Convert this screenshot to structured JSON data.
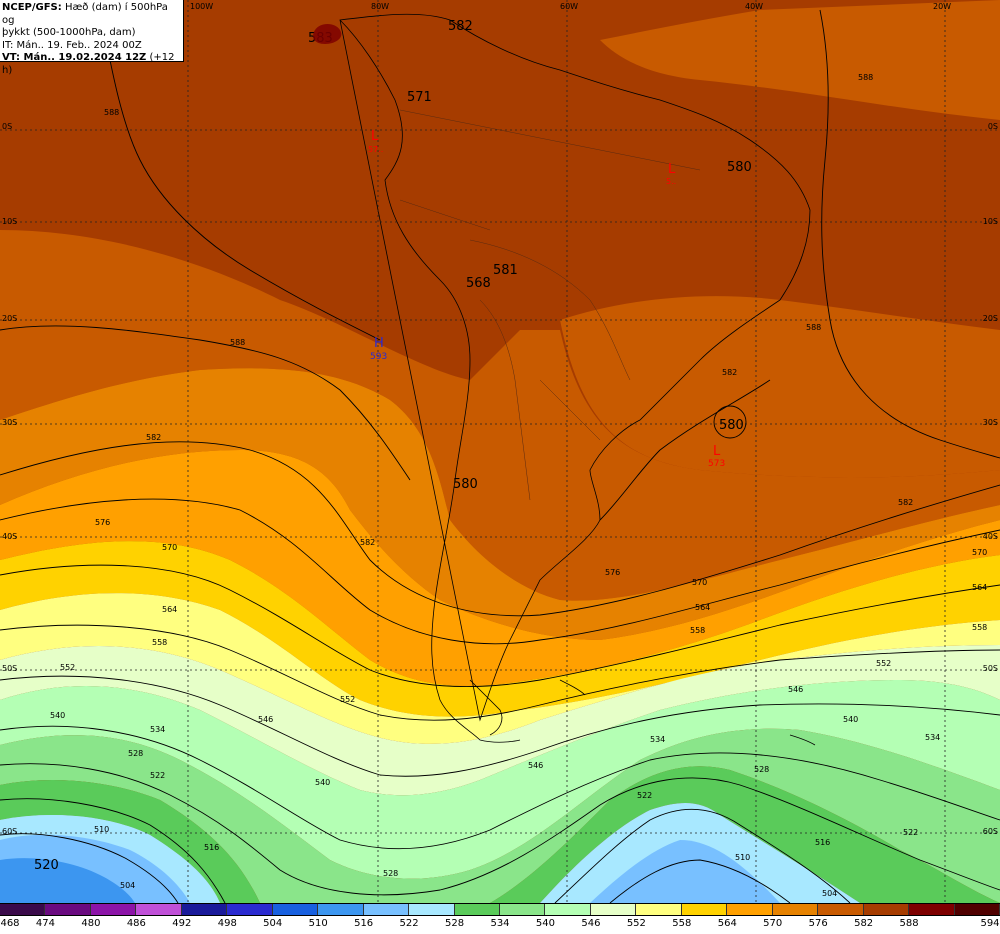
{
  "title": {
    "line1_bold": "NCEP/GFS:",
    "line1_rest": " Hæð (dam) í 500hPa og",
    "line2": "þykkt (500-1000hPa, dam)",
    "line3": "IT: Mán.. 19. Feb.. 2024 00Z",
    "line4_bold": "VT: Mán.. 19.02.2024 12Z",
    "line4_rest": " (+12 h)"
  },
  "lon_labels": [
    "100W",
    "80W",
    "60W",
    "40W",
    "20W"
  ],
  "lat_labels": [
    "0S",
    "10S",
    "20S",
    "30S",
    "40S",
    "50S",
    "60S"
  ],
  "colorbar": {
    "labels": [
      "468",
      "474",
      "480",
      "486",
      "492",
      "498",
      "504",
      "510",
      "516",
      "522",
      "528",
      "534",
      "540",
      "546",
      "552",
      "558",
      "564",
      "570",
      "576",
      "582",
      "588",
      "594"
    ],
    "colors": [
      "#3a0a4a",
      "#6a0a80",
      "#8c14a8",
      "#c050d8",
      "#1a1a9a",
      "#2a2ad0",
      "#1860e0",
      "#3c96f0",
      "#78c0ff",
      "#a8e8ff",
      "#5acb5a",
      "#8ae58a",
      "#b4ffb4",
      "#e6ffc8",
      "#ffff80",
      "#ffd200",
      "#ffa000",
      "#e68200",
      "#c85a00",
      "#a63c00",
      "#7e0000",
      "#500000"
    ]
  },
  "height_labels": {
    "h583_top": "583",
    "h582_top": "582",
    "h571": "571",
    "h580_ne": "580",
    "h581": "581",
    "h568": "568",
    "h580_s": "580",
    "h580_cut": "580",
    "h520": "520"
  },
  "pressure_centers": {
    "high_letter": "H",
    "high_value": "593",
    "low1_letter": "L",
    "low1_value": "573",
    "low2_letter": "L",
    "low2_value": "5..",
    "low3_letter": "L",
    "low3_value": "57.."
  },
  "contour_labels": [
    "588",
    "588",
    "588",
    "582",
    "582",
    "582",
    "576",
    "576",
    "570",
    "570",
    "570",
    "564",
    "564",
    "564",
    "558",
    "558",
    "558",
    "552",
    "552",
    "552",
    "546",
    "546",
    "546",
    "540",
    "540",
    "540",
    "534",
    "534",
    "534",
    "528",
    "528",
    "528",
    "522",
    "522",
    "522",
    "516",
    "516",
    "510",
    "510",
    "504",
    "504",
    "582",
    "588"
  ]
}
